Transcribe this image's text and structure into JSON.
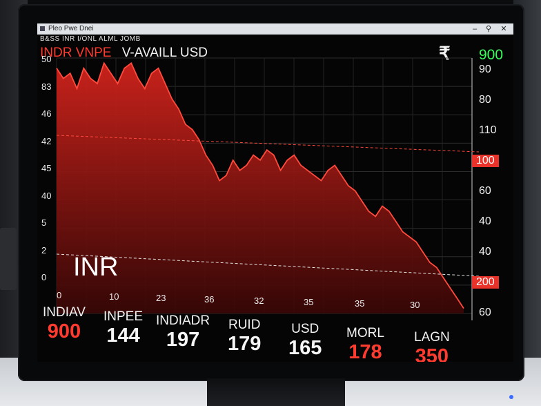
{
  "window": {
    "title": "Pleo Pwe Dnei",
    "menu": "B&SS INR  I/ONL  ALML  JOMB",
    "controls": [
      "–",
      "⚲",
      "✕"
    ]
  },
  "header": {
    "pair_label": "INDR VNPE",
    "subtitle": "V-AVAILL USD",
    "currency_symbol": "₹",
    "top_value": "900"
  },
  "chart_data": {
    "type": "area",
    "series_color": "#e8322a",
    "left_axis_labels": [
      "50",
      "83",
      "46",
      "42",
      "45",
      "40",
      "5",
      "2",
      "0"
    ],
    "right_axis_labels": [
      "90",
      "80",
      "110",
      "100",
      "60",
      "40",
      "40",
      "200",
      "60"
    ],
    "right_axis_highlighted": [
      "100",
      "200"
    ],
    "x_labels": [
      "0",
      "10",
      "23",
      "36",
      "32",
      "35",
      "35",
      "30"
    ],
    "y": [
      48,
      46,
      47,
      44,
      48,
      46,
      45,
      49,
      47,
      45,
      48,
      49,
      46,
      44,
      47,
      48,
      45,
      42,
      40,
      37,
      36,
      34,
      31,
      29,
      26,
      27,
      30,
      28,
      29,
      31,
      30,
      32,
      31,
      28,
      30,
      31,
      29,
      28,
      27,
      26,
      28,
      29,
      27,
      25,
      24,
      22,
      20,
      19,
      21,
      20,
      18,
      16,
      15,
      14,
      12,
      10,
      9,
      7,
      5,
      3,
      1
    ],
    "annotation": "INR",
    "reference_lines": [
      "upper",
      "lower"
    ]
  },
  "stats": [
    {
      "label": "INDIAV",
      "value": "900",
      "color": "red"
    },
    {
      "label": "INPEE",
      "value": "144",
      "color": "white"
    },
    {
      "label": "INDIADR",
      "value": "197",
      "color": "white"
    },
    {
      "label": "RUID",
      "value": "179",
      "color": "white"
    },
    {
      "label": "USD",
      "value": "165",
      "color": "white"
    },
    {
      "label": "MORL",
      "value": "178",
      "color": "red"
    },
    {
      "label": "LAGN",
      "value": "350",
      "color": "red"
    }
  ]
}
